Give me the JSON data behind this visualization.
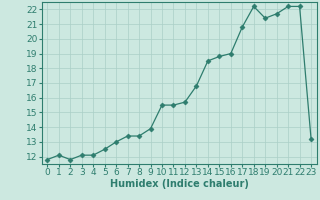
{
  "x": [
    0,
    1,
    2,
    3,
    4,
    5,
    6,
    7,
    8,
    9,
    10,
    11,
    12,
    13,
    14,
    15,
    16,
    17,
    18,
    19,
    20,
    21,
    22,
    23
  ],
  "y": [
    11.8,
    12.1,
    11.8,
    12.1,
    12.1,
    12.5,
    13.0,
    13.4,
    13.4,
    13.9,
    15.5,
    15.5,
    15.7,
    16.8,
    18.5,
    18.8,
    19.0,
    20.8,
    22.2,
    21.4,
    21.7,
    22.2,
    22.2,
    13.2
  ],
  "xlabel": "Humidex (Indice chaleur)",
  "ylabel": "",
  "xlim": [
    -0.5,
    23.5
  ],
  "ylim": [
    11.5,
    22.5
  ],
  "yticks": [
    12,
    13,
    14,
    15,
    16,
    17,
    18,
    19,
    20,
    21,
    22
  ],
  "xticks": [
    0,
    1,
    2,
    3,
    4,
    5,
    6,
    7,
    8,
    9,
    10,
    11,
    12,
    13,
    14,
    15,
    16,
    17,
    18,
    19,
    20,
    21,
    22,
    23
  ],
  "line_color": "#2e7d6e",
  "marker": "D",
  "marker_size": 2.5,
  "bg_color": "#cce8e0",
  "grid_color": "#aacfc7",
  "label_fontsize": 7,
  "tick_fontsize": 6.5
}
